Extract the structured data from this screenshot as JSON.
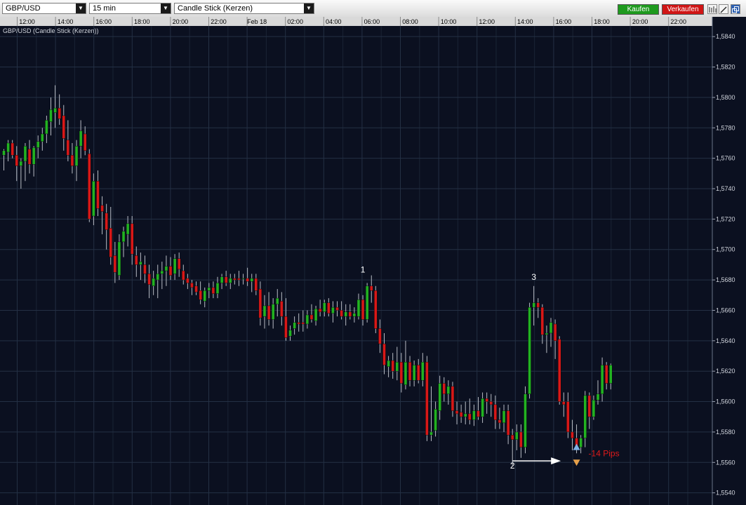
{
  "toolbar": {
    "symbol": "GBP/USD",
    "interval": "15 min",
    "chart_style": "Candle Stick (Kerzen)",
    "buy_label": "Kaufen",
    "sell_label": "Verkaufen",
    "buy_color": "#1e9a1e",
    "sell_color": "#d01515",
    "icons": [
      "bars-chart-icon",
      "draw-line-icon",
      "popout-window-icon"
    ]
  },
  "chart_data": {
    "type": "candlestick",
    "title": "GBP/USD (Candle Stick (Kerzen))",
    "xlabel": "",
    "ylabel": "",
    "x_ticks": [
      "12:00",
      "14:00",
      "16:00",
      "18:00",
      "20:00",
      "22:00",
      "Feb 18",
      "02:00",
      "04:00",
      "06:00",
      "08:00",
      "10:00",
      "12:00",
      "14:00",
      "16:00",
      "18:00",
      "20:00",
      "22:00"
    ],
    "y_ticks": [
      "1,5540",
      "1,5560",
      "1,5580",
      "1,5600",
      "1,5620",
      "1,5640",
      "1,5660",
      "1,5680",
      "1,5700",
      "1,5720",
      "1,5740",
      "1,5760",
      "1,5780",
      "1,5800",
      "1,5820",
      "1,5840"
    ],
    "ylim": [
      1.5532,
      1.5847
    ],
    "grid": true,
    "colors": {
      "background": "#0b1020",
      "grid": "#243044",
      "up": "#22b322",
      "down": "#d81818",
      "wick": "#b8bcc4",
      "annotation": "#ffffff",
      "pips_label": "#e01a1a"
    },
    "candles": [
      {
        "o": 1.5762,
        "h": 1.5766,
        "l": 1.5752,
        "c": 1.5765
      },
      {
        "o": 1.5764,
        "h": 1.5772,
        "l": 1.5758,
        "c": 1.577
      },
      {
        "o": 1.577,
        "h": 1.5772,
        "l": 1.576,
        "c": 1.5762
      },
      {
        "o": 1.5762,
        "h": 1.5768,
        "l": 1.5745,
        "c": 1.5755
      },
      {
        "o": 1.5755,
        "h": 1.576,
        "l": 1.574,
        "c": 1.5758
      },
      {
        "o": 1.5758,
        "h": 1.577,
        "l": 1.5745,
        "c": 1.5768
      },
      {
        "o": 1.5766,
        "h": 1.5772,
        "l": 1.575,
        "c": 1.5756
      },
      {
        "o": 1.5756,
        "h": 1.5768,
        "l": 1.5748,
        "c": 1.5767
      },
      {
        "o": 1.5767,
        "h": 1.5775,
        "l": 1.576,
        "c": 1.5771
      },
      {
        "o": 1.5771,
        "h": 1.578,
        "l": 1.5765,
        "c": 1.5776
      },
      {
        "o": 1.5776,
        "h": 1.5788,
        "l": 1.577,
        "c": 1.5785
      },
      {
        "o": 1.5784,
        "h": 1.58,
        "l": 1.5775,
        "c": 1.5792
      },
      {
        "o": 1.579,
        "h": 1.5808,
        "l": 1.578,
        "c": 1.5793
      },
      {
        "o": 1.5793,
        "h": 1.5802,
        "l": 1.5782,
        "c": 1.5786
      },
      {
        "o": 1.5788,
        "h": 1.5795,
        "l": 1.5765,
        "c": 1.5773
      },
      {
        "o": 1.5772,
        "h": 1.5785,
        "l": 1.5758,
        "c": 1.5762
      },
      {
        "o": 1.5762,
        "h": 1.577,
        "l": 1.575,
        "c": 1.5755
      },
      {
        "o": 1.5755,
        "h": 1.5772,
        "l": 1.5745,
        "c": 1.5768
      },
      {
        "o": 1.5768,
        "h": 1.5785,
        "l": 1.576,
        "c": 1.5778
      },
      {
        "o": 1.5776,
        "h": 1.5781,
        "l": 1.5762,
        "c": 1.5765
      },
      {
        "o": 1.5763,
        "h": 1.5766,
        "l": 1.5718,
        "c": 1.572
      },
      {
        "o": 1.5722,
        "h": 1.575,
        "l": 1.5716,
        "c": 1.5745
      },
      {
        "o": 1.5745,
        "h": 1.5752,
        "l": 1.5722,
        "c": 1.5727
      },
      {
        "o": 1.5729,
        "h": 1.5735,
        "l": 1.571,
        "c": 1.5725
      },
      {
        "o": 1.5724,
        "h": 1.573,
        "l": 1.57,
        "c": 1.5713
      },
      {
        "o": 1.5714,
        "h": 1.5728,
        "l": 1.569,
        "c": 1.5695
      },
      {
        "o": 1.5696,
        "h": 1.5705,
        "l": 1.5678,
        "c": 1.5685
      },
      {
        "o": 1.5683,
        "h": 1.571,
        "l": 1.568,
        "c": 1.5705
      },
      {
        "o": 1.5705,
        "h": 1.5715,
        "l": 1.5695,
        "c": 1.5712
      },
      {
        "o": 1.571,
        "h": 1.5722,
        "l": 1.5702,
        "c": 1.5717
      },
      {
        "o": 1.5717,
        "h": 1.5722,
        "l": 1.569,
        "c": 1.5697
      },
      {
        "o": 1.5696,
        "h": 1.5702,
        "l": 1.5682,
        "c": 1.569
      },
      {
        "o": 1.569,
        "h": 1.5698,
        "l": 1.568,
        "c": 1.5692
      },
      {
        "o": 1.569,
        "h": 1.5696,
        "l": 1.5678,
        "c": 1.5684
      },
      {
        "o": 1.5684,
        "h": 1.569,
        "l": 1.5668,
        "c": 1.5677
      },
      {
        "o": 1.5676,
        "h": 1.5686,
        "l": 1.567,
        "c": 1.5681
      },
      {
        "o": 1.568,
        "h": 1.569,
        "l": 1.5668,
        "c": 1.5684
      },
      {
        "o": 1.5684,
        "h": 1.5692,
        "l": 1.5674,
        "c": 1.5686
      },
      {
        "o": 1.5686,
        "h": 1.5696,
        "l": 1.5676,
        "c": 1.5689
      },
      {
        "o": 1.5689,
        "h": 1.5695,
        "l": 1.568,
        "c": 1.5683
      },
      {
        "o": 1.5684,
        "h": 1.5697,
        "l": 1.568,
        "c": 1.5694
      },
      {
        "o": 1.5694,
        "h": 1.5698,
        "l": 1.5682,
        "c": 1.5687
      },
      {
        "o": 1.5686,
        "h": 1.569,
        "l": 1.5677,
        "c": 1.568
      },
      {
        "o": 1.5681,
        "h": 1.5684,
        "l": 1.5674,
        "c": 1.5678
      },
      {
        "o": 1.5678,
        "h": 1.568,
        "l": 1.567,
        "c": 1.5675
      },
      {
        "o": 1.5676,
        "h": 1.5679,
        "l": 1.567,
        "c": 1.5672
      },
      {
        "o": 1.5673,
        "h": 1.5679,
        "l": 1.5664,
        "c": 1.5667
      },
      {
        "o": 1.5666,
        "h": 1.5675,
        "l": 1.5662,
        "c": 1.5673
      },
      {
        "o": 1.5673,
        "h": 1.5678,
        "l": 1.5668,
        "c": 1.5675
      },
      {
        "o": 1.5675,
        "h": 1.5679,
        "l": 1.5668,
        "c": 1.5671
      },
      {
        "o": 1.5671,
        "h": 1.5682,
        "l": 1.5668,
        "c": 1.5678
      },
      {
        "o": 1.5678,
        "h": 1.5684,
        "l": 1.5674,
        "c": 1.5682
      },
      {
        "o": 1.5682,
        "h": 1.5686,
        "l": 1.5676,
        "c": 1.5678
      },
      {
        "o": 1.5678,
        "h": 1.5684,
        "l": 1.5674,
        "c": 1.5681
      },
      {
        "o": 1.5681,
        "h": 1.5684,
        "l": 1.5677,
        "c": 1.568
      },
      {
        "o": 1.5681,
        "h": 1.5686,
        "l": 1.5676,
        "c": 1.568
      },
      {
        "o": 1.5681,
        "h": 1.5684,
        "l": 1.5677,
        "c": 1.5681
      },
      {
        "o": 1.5681,
        "h": 1.5688,
        "l": 1.5676,
        "c": 1.5679
      },
      {
        "o": 1.5679,
        "h": 1.5684,
        "l": 1.5672,
        "c": 1.5681
      },
      {
        "o": 1.5681,
        "h": 1.5684,
        "l": 1.567,
        "c": 1.5673
      },
      {
        "o": 1.5674,
        "h": 1.5679,
        "l": 1.565,
        "c": 1.5655
      },
      {
        "o": 1.5656,
        "h": 1.567,
        "l": 1.5648,
        "c": 1.5663
      },
      {
        "o": 1.5663,
        "h": 1.5672,
        "l": 1.565,
        "c": 1.5654
      },
      {
        "o": 1.5654,
        "h": 1.5668,
        "l": 1.5648,
        "c": 1.5664
      },
      {
        "o": 1.5664,
        "h": 1.5674,
        "l": 1.5656,
        "c": 1.5668
      },
      {
        "o": 1.5666,
        "h": 1.5672,
        "l": 1.565,
        "c": 1.5656
      },
      {
        "o": 1.5656,
        "h": 1.5668,
        "l": 1.564,
        "c": 1.5642
      },
      {
        "o": 1.5643,
        "h": 1.565,
        "l": 1.564,
        "c": 1.5647
      },
      {
        "o": 1.5648,
        "h": 1.5656,
        "l": 1.5644,
        "c": 1.5652
      },
      {
        "o": 1.5652,
        "h": 1.5658,
        "l": 1.5646,
        "c": 1.5651
      },
      {
        "o": 1.5652,
        "h": 1.566,
        "l": 1.5646,
        "c": 1.5651
      },
      {
        "o": 1.5651,
        "h": 1.566,
        "l": 1.5648,
        "c": 1.5657
      },
      {
        "o": 1.5657,
        "h": 1.5664,
        "l": 1.5652,
        "c": 1.5654
      },
      {
        "o": 1.5653,
        "h": 1.5663,
        "l": 1.565,
        "c": 1.5661
      },
      {
        "o": 1.5661,
        "h": 1.5667,
        "l": 1.5656,
        "c": 1.5659
      },
      {
        "o": 1.5659,
        "h": 1.5667,
        "l": 1.5656,
        "c": 1.5665
      },
      {
        "o": 1.5665,
        "h": 1.5668,
        "l": 1.5656,
        "c": 1.5658
      },
      {
        "o": 1.5658,
        "h": 1.5666,
        "l": 1.5652,
        "c": 1.5662
      },
      {
        "o": 1.5662,
        "h": 1.5666,
        "l": 1.5656,
        "c": 1.566
      },
      {
        "o": 1.566,
        "h": 1.5666,
        "l": 1.5654,
        "c": 1.5656
      },
      {
        "o": 1.5656,
        "h": 1.5664,
        "l": 1.565,
        "c": 1.5659
      },
      {
        "o": 1.5659,
        "h": 1.5664,
        "l": 1.5654,
        "c": 1.5656
      },
      {
        "o": 1.5656,
        "h": 1.5662,
        "l": 1.5652,
        "c": 1.5658
      },
      {
        "o": 1.5656,
        "h": 1.5671,
        "l": 1.5654,
        "c": 1.5667
      },
      {
        "o": 1.5667,
        "h": 1.567,
        "l": 1.565,
        "c": 1.5654
      },
      {
        "o": 1.5654,
        "h": 1.5678,
        "l": 1.5652,
        "c": 1.5676
      },
      {
        "o": 1.5676,
        "h": 1.5683,
        "l": 1.5665,
        "c": 1.5673
      },
      {
        "o": 1.5673,
        "h": 1.5676,
        "l": 1.5645,
        "c": 1.5648
      },
      {
        "o": 1.5648,
        "h": 1.5654,
        "l": 1.5632,
        "c": 1.5638
      },
      {
        "o": 1.5638,
        "h": 1.5645,
        "l": 1.5618,
        "c": 1.5624
      },
      {
        "o": 1.5623,
        "h": 1.563,
        "l": 1.5616,
        "c": 1.5627
      },
      {
        "o": 1.5627,
        "h": 1.5632,
        "l": 1.5615,
        "c": 1.562
      },
      {
        "o": 1.562,
        "h": 1.5636,
        "l": 1.5614,
        "c": 1.5626
      },
      {
        "o": 1.5626,
        "h": 1.5632,
        "l": 1.5606,
        "c": 1.5612
      },
      {
        "o": 1.5611,
        "h": 1.564,
        "l": 1.5608,
        "c": 1.5626
      },
      {
        "o": 1.5626,
        "h": 1.563,
        "l": 1.561,
        "c": 1.5614
      },
      {
        "o": 1.5614,
        "h": 1.5627,
        "l": 1.561,
        "c": 1.5624
      },
      {
        "o": 1.5624,
        "h": 1.5628,
        "l": 1.5612,
        "c": 1.5614
      },
      {
        "o": 1.5614,
        "h": 1.5632,
        "l": 1.561,
        "c": 1.5626
      },
      {
        "o": 1.5626,
        "h": 1.563,
        "l": 1.5574,
        "c": 1.5578
      },
      {
        "o": 1.5578,
        "h": 1.561,
        "l": 1.5574,
        "c": 1.558
      },
      {
        "o": 1.5581,
        "h": 1.56,
        "l": 1.5577,
        "c": 1.5595
      },
      {
        "o": 1.5594,
        "h": 1.5617,
        "l": 1.5588,
        "c": 1.5612
      },
      {
        "o": 1.5612,
        "h": 1.5616,
        "l": 1.56,
        "c": 1.5605
      },
      {
        "o": 1.5605,
        "h": 1.5614,
        "l": 1.5598,
        "c": 1.561
      },
      {
        "o": 1.561,
        "h": 1.5613,
        "l": 1.559,
        "c": 1.5594
      },
      {
        "o": 1.5594,
        "h": 1.56,
        "l": 1.5585,
        "c": 1.5592
      },
      {
        "o": 1.5593,
        "h": 1.5598,
        "l": 1.5586,
        "c": 1.559
      },
      {
        "o": 1.559,
        "h": 1.56,
        "l": 1.5585,
        "c": 1.5592
      },
      {
        "o": 1.5592,
        "h": 1.5602,
        "l": 1.5585,
        "c": 1.5588
      },
      {
        "o": 1.5588,
        "h": 1.5598,
        "l": 1.5584,
        "c": 1.5594
      },
      {
        "o": 1.5594,
        "h": 1.5603,
        "l": 1.5588,
        "c": 1.559
      },
      {
        "o": 1.559,
        "h": 1.5606,
        "l": 1.5586,
        "c": 1.5602
      },
      {
        "o": 1.5602,
        "h": 1.5606,
        "l": 1.5592,
        "c": 1.56
      },
      {
        "o": 1.56,
        "h": 1.5605,
        "l": 1.559,
        "c": 1.5598
      },
      {
        "o": 1.5598,
        "h": 1.5604,
        "l": 1.5582,
        "c": 1.5588
      },
      {
        "o": 1.5588,
        "h": 1.5596,
        "l": 1.5582,
        "c": 1.5586
      },
      {
        "o": 1.5586,
        "h": 1.5598,
        "l": 1.558,
        "c": 1.5594
      },
      {
        "o": 1.5594,
        "h": 1.5598,
        "l": 1.5572,
        "c": 1.5578
      },
      {
        "o": 1.5578,
        "h": 1.5582,
        "l": 1.5558,
        "c": 1.5575
      },
      {
        "o": 1.5575,
        "h": 1.5585,
        "l": 1.5568,
        "c": 1.558
      },
      {
        "o": 1.558,
        "h": 1.5585,
        "l": 1.5563,
        "c": 1.557
      },
      {
        "o": 1.557,
        "h": 1.561,
        "l": 1.5566,
        "c": 1.5605
      },
      {
        "o": 1.5605,
        "h": 1.5665,
        "l": 1.5602,
        "c": 1.5662
      },
      {
        "o": 1.5662,
        "h": 1.5676,
        "l": 1.565,
        "c": 1.5665
      },
      {
        "o": 1.5665,
        "h": 1.5668,
        "l": 1.5655,
        "c": 1.5662
      },
      {
        "o": 1.5662,
        "h": 1.5664,
        "l": 1.5638,
        "c": 1.5644
      },
      {
        "o": 1.5644,
        "h": 1.565,
        "l": 1.5632,
        "c": 1.5645
      },
      {
        "o": 1.5645,
        "h": 1.5655,
        "l": 1.5636,
        "c": 1.5652
      },
      {
        "o": 1.5651,
        "h": 1.5654,
        "l": 1.5628,
        "c": 1.564
      },
      {
        "o": 1.5641,
        "h": 1.5643,
        "l": 1.5598,
        "c": 1.56
      },
      {
        "o": 1.56,
        "h": 1.5606,
        "l": 1.559,
        "c": 1.5598
      },
      {
        "o": 1.56,
        "h": 1.5606,
        "l": 1.5576,
        "c": 1.558
      },
      {
        "o": 1.558,
        "h": 1.5588,
        "l": 1.5568,
        "c": 1.5576
      },
      {
        "o": 1.5576,
        "h": 1.5585,
        "l": 1.5566,
        "c": 1.557
      },
      {
        "o": 1.557,
        "h": 1.5578,
        "l": 1.5566,
        "c": 1.5576
      },
      {
        "o": 1.5576,
        "h": 1.5607,
        "l": 1.557,
        "c": 1.5604
      },
      {
        "o": 1.5604,
        "h": 1.5606,
        "l": 1.5582,
        "c": 1.559
      },
      {
        "o": 1.559,
        "h": 1.5604,
        "l": 1.5588,
        "c": 1.5601
      },
      {
        "o": 1.5601,
        "h": 1.5614,
        "l": 1.5598,
        "c": 1.5605
      },
      {
        "o": 1.5605,
        "h": 1.5629,
        "l": 1.56,
        "c": 1.5624
      },
      {
        "o": 1.5624,
        "h": 1.5626,
        "l": 1.5608,
        "c": 1.5612
      },
      {
        "o": 1.5612,
        "h": 1.5625,
        "l": 1.5608,
        "c": 1.5624
      }
    ],
    "annotations": [
      {
        "label": "1",
        "x_index": 84,
        "price": 1.5685
      },
      {
        "label": "2",
        "x_index": 119,
        "price": 1.5556
      },
      {
        "label": "3",
        "x_index": 124,
        "price": 1.568
      }
    ],
    "arrow": {
      "from_index": 119,
      "to_index": 130,
      "price": 1.5561
    },
    "entry_marker": {
      "x_index": 134,
      "price": 1.557,
      "icon": "buy-up-arrow-icon"
    },
    "exit_marker": {
      "x_index": 134,
      "price": 1.556,
      "icon": "sell-down-arrow-icon"
    },
    "pips_label": "-14 Pips"
  }
}
